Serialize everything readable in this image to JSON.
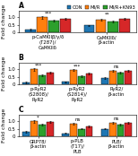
{
  "chart_data": [
    {
      "type": "bar",
      "title": "A",
      "y_label": "Fold change",
      "categories": [
        "p-CaMKIIβ/γ/δ\n(T287)/\nCaMKIIδ",
        "CaMKIIδ/\nβ-actin"
      ],
      "series": [
        {
          "name": "CON",
          "values": [
            0.18,
            0.45
          ],
          "errors": [
            0.05,
            0.04
          ]
        },
        {
          "name": "MI/R",
          "values": [
            1.0,
            0.82
          ],
          "errors": [
            0.08,
            0.06
          ]
        },
        {
          "name": "MI/R+KN93",
          "values": [
            0.75,
            0.7
          ],
          "errors": [
            0.06,
            0.05
          ]
        },
        {
          "values": [
            0.88,
            0.92
          ],
          "errors": [
            0.07,
            0.06
          ]
        }
      ],
      "annotations": [
        "***",
        "**"
      ],
      "ylim": [
        0,
        1.45
      ],
      "yticks": [
        0,
        0.5,
        {
          "value": 1,
          "label": "1.0"
        }
      ],
      "legend": "lower right"
    },
    {
      "type": "bar",
      "title": "B",
      "y_label": "Fold change",
      "categories": [
        "p-RyR2\n(S2808)/\nRyR2",
        "p-RyR2\n(S2814)/\nRyR2",
        "RyR2/\nβ-actin"
      ],
      "series": [
        {
          "values": [
            0.12,
            0.15,
            0.4
          ],
          "errors": [
            0.04,
            0.04,
            0.05
          ]
        },
        {
          "values": [
            1.0,
            0.95,
            0.88
          ],
          "errors": [
            0.09,
            0.08,
            0.07
          ]
        },
        {
          "values": [
            0.6,
            0.55,
            0.75
          ],
          "errors": [
            0.05,
            0.05,
            0.06
          ]
        },
        {
          "values": [
            0.78,
            0.72,
            0.9
          ],
          "errors": [
            0.06,
            0.06,
            0.07
          ]
        }
      ],
      "annotations": [
        "***",
        "***",
        "ns"
      ],
      "ylim": [
        0,
        1.45
      ],
      "yticks": [
        0,
        0.5,
        {
          "value": 1,
          "label": "1.0"
        }
      ]
    },
    {
      "type": "bar",
      "title": "C",
      "y_label": "Fold change",
      "categories": [
        "GRP78/\nβ-actin",
        "p-PLB\n(T17)/\nPLB",
        "PLB/\nβ-actin"
      ],
      "series": [
        {
          "values": [
            0.3,
            0.2,
            0.5
          ],
          "errors": [
            0.05,
            0.04,
            0.05
          ]
        },
        {
          "values": [
            1.0,
            0.85,
            0.9
          ],
          "errors": [
            0.08,
            0.07,
            0.07
          ]
        },
        {
          "values": [
            0.8,
            0.5,
            0.78
          ],
          "errors": [
            0.06,
            0.05,
            0.05
          ]
        },
        {
          "values": [
            0.95,
            0.65,
            0.88
          ],
          "errors": [
            0.07,
            0.06,
            0.07
          ]
        }
      ],
      "annotations": [
        "*",
        "ns",
        "ns"
      ],
      "ylim": [
        0,
        1.45
      ],
      "yticks": [
        0,
        0.5,
        {
          "value": 1,
          "label": "1.0"
        }
      ]
    }
  ]
}
